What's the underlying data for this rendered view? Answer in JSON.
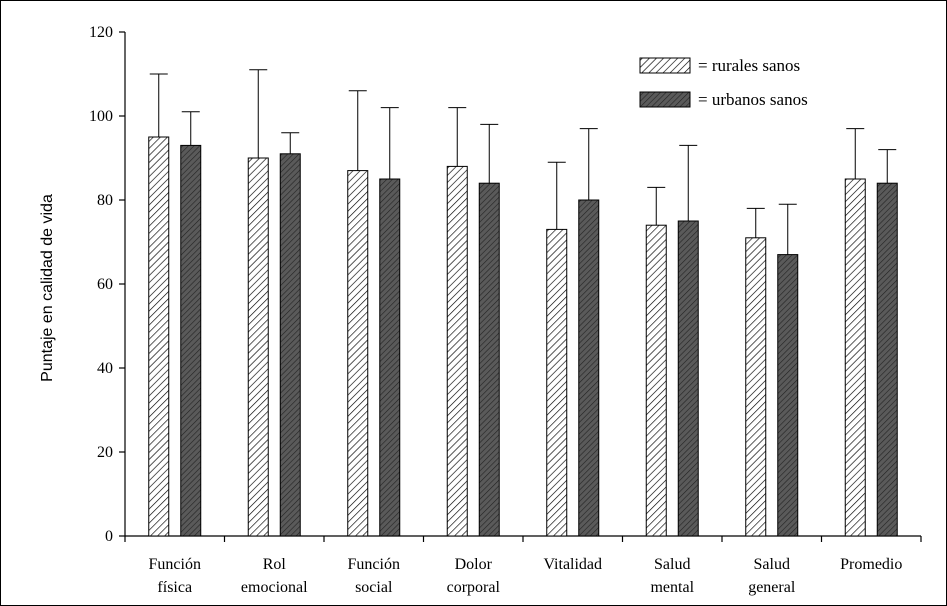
{
  "chart_data": {
    "type": "bar",
    "title": "",
    "xlabel": "",
    "ylabel": "Puntaje en calidad de vida",
    "ylim": [
      0,
      120
    ],
    "yticks": [
      0,
      20,
      40,
      60,
      80,
      100,
      120
    ],
    "grid": false,
    "legend_position": "top-right",
    "categories": [
      [
        "Función",
        "física"
      ],
      [
        "Rol",
        "emocional"
      ],
      [
        "Función",
        "social"
      ],
      [
        "Dolor",
        "corporal"
      ],
      [
        "Vitalidad"
      ],
      [
        "Salud",
        "mental"
      ],
      [
        "Salud",
        "general"
      ],
      [
        "Promedio"
      ]
    ],
    "series": [
      {
        "name": "= rurales sanos",
        "pattern": "hatch-light",
        "color": "#ffffff",
        "values": [
          95,
          90,
          87,
          88,
          73,
          74,
          71,
          85
        ],
        "error": [
          15,
          21,
          19,
          14,
          16,
          9,
          7,
          12
        ]
      },
      {
        "name": "= urbanos sanos",
        "pattern": "hatch-dark",
        "color": "#5a5a5a",
        "values": [
          93,
          91,
          85,
          84,
          80,
          75,
          67,
          84
        ],
        "error": [
          8,
          5,
          17,
          14,
          17,
          18,
          12,
          8
        ]
      }
    ]
  }
}
